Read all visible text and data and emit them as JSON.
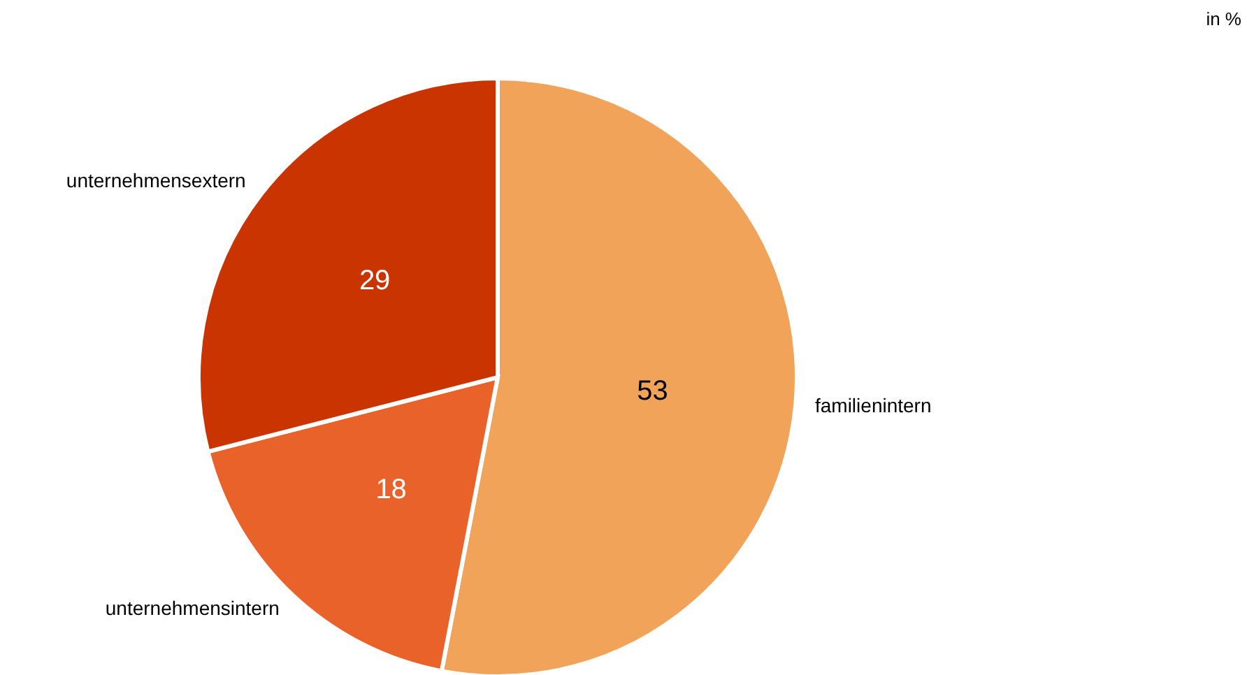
{
  "chart_data": {
    "type": "pie",
    "categories": [
      "familienintern",
      "unternehmensintern",
      "unternehmensextern"
    ],
    "values": [
      53,
      18,
      29
    ],
    "colors": [
      "#f2a35a",
      "#e8622a",
      "#c93400"
    ],
    "data_labels": true,
    "annotations": [
      "in %"
    ]
  }
}
